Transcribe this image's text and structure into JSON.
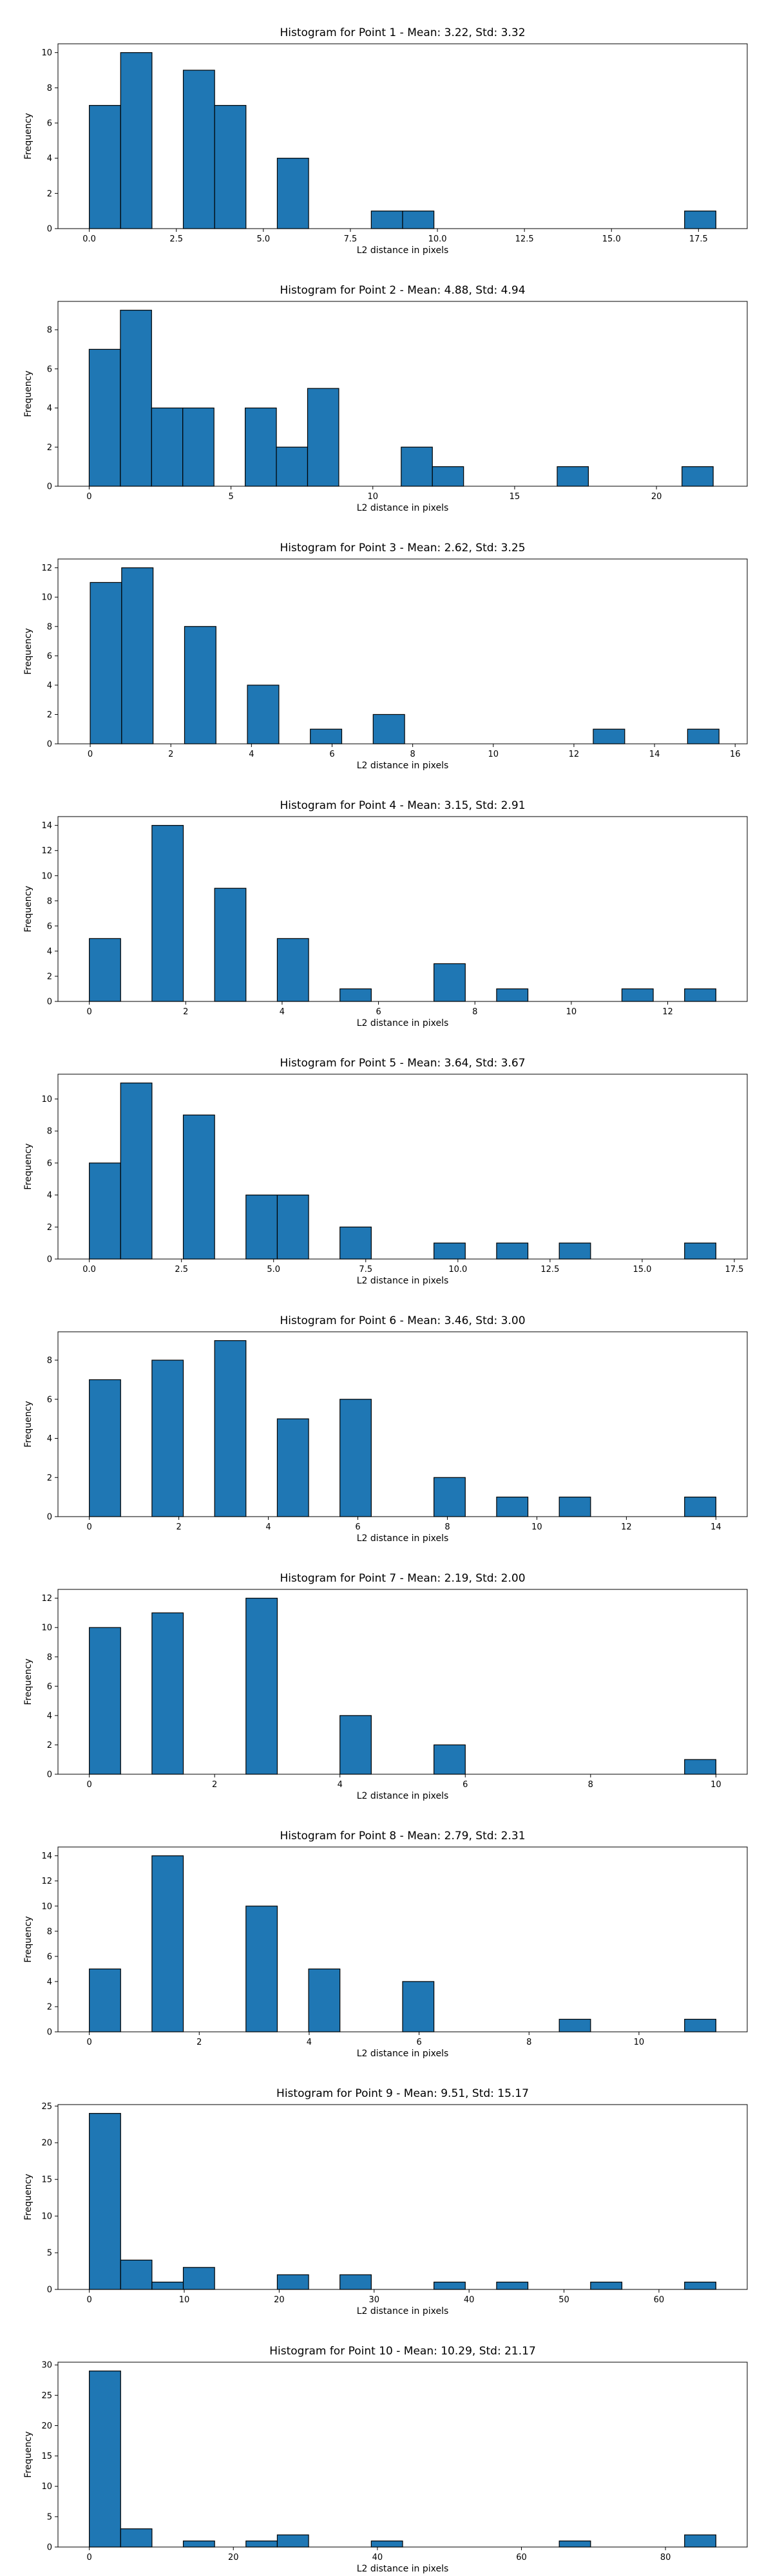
{
  "chart_data": [
    {
      "type": "bar",
      "title": "Histogram for Point 1 - Mean: 3.22, Std: 3.32",
      "xlabel": "L2 distance in pixels",
      "ylabel": "Frequency",
      "xlim": [
        -0.9,
        18.9
      ],
      "ylim": [
        0,
        10.5
      ],
      "xticks": [
        0.0,
        2.5,
        5.0,
        7.5,
        10.0,
        12.5,
        15.0,
        17.5
      ],
      "xtick_labels": [
        "0.0",
        "2.5",
        "5.0",
        "7.5",
        "10.0",
        "12.5",
        "15.0",
        "17.5"
      ],
      "yticks": [
        0,
        2,
        4,
        6,
        8,
        10
      ],
      "bins": [
        0,
        0.9,
        1.8,
        2.7,
        3.6,
        4.5,
        5.4,
        6.3,
        7.2,
        8.1,
        9.0,
        9.9,
        10.8,
        11.7,
        12.6,
        13.5,
        14.4,
        15.3,
        16.2,
        17.1,
        18.0
      ],
      "counts": [
        7,
        10,
        0,
        9,
        7,
        0,
        4,
        0,
        0,
        1,
        1,
        0,
        0,
        0,
        0,
        0,
        0,
        0,
        0,
        1
      ]
    },
    {
      "type": "bar",
      "title": "Histogram for Point 2 - Mean: 4.88, Std: 4.94",
      "xlabel": "L2 distance in pixels",
      "ylabel": "Frequency",
      "xlim": [
        -1.1,
        23.2
      ],
      "ylim": [
        0,
        9.45
      ],
      "xticks": [
        0,
        5,
        10,
        15,
        20
      ],
      "xtick_labels": [
        "0",
        "5",
        "10",
        "15",
        "20"
      ],
      "yticks": [
        0,
        2,
        4,
        6,
        8
      ],
      "bins": [
        0,
        1.1,
        2.2,
        3.3,
        4.4,
        5.5,
        6.6,
        7.7,
        8.8,
        9.9,
        11.0,
        12.1,
        13.2,
        14.3,
        15.4,
        16.5,
        17.6,
        18.7,
        19.8,
        20.9,
        22.0
      ],
      "counts": [
        7,
        9,
        4,
        4,
        0,
        4,
        2,
        5,
        0,
        0,
        2,
        1,
        0,
        0,
        0,
        1,
        0,
        0,
        0,
        1
      ]
    },
    {
      "type": "bar",
      "title": "Histogram for Point 3 - Mean: 2.62, Std: 3.25",
      "xlabel": "L2 distance in pixels",
      "ylabel": "Frequency",
      "xlim": [
        -0.8,
        16.3
      ],
      "ylim": [
        0,
        12.6
      ],
      "xticks": [
        0,
        2,
        4,
        6,
        8,
        10,
        12,
        14,
        16
      ],
      "xtick_labels": [
        "0",
        "2",
        "4",
        "6",
        "8",
        "10",
        "12",
        "14",
        "16"
      ],
      "yticks": [
        0,
        2,
        4,
        6,
        8,
        10,
        12
      ],
      "bins": [
        0,
        0.78,
        1.56,
        2.34,
        3.12,
        3.9,
        4.68,
        5.46,
        6.24,
        7.02,
        7.8,
        8.58,
        9.36,
        10.14,
        10.92,
        11.7,
        12.48,
        13.26,
        14.04,
        14.82,
        15.6
      ],
      "counts": [
        11,
        12,
        0,
        8,
        0,
        4,
        0,
        1,
        0,
        2,
        0,
        0,
        0,
        0,
        0,
        0,
        1,
        0,
        0,
        1
      ]
    },
    {
      "type": "bar",
      "title": "Histogram for Point 4 - Mean: 3.15, Std: 2.91",
      "xlabel": "L2 distance in pixels",
      "ylabel": "Frequency",
      "xlim": [
        -0.65,
        13.65
      ],
      "ylim": [
        0,
        14.7
      ],
      "xticks": [
        0,
        2,
        4,
        6,
        8,
        10,
        12
      ],
      "xtick_labels": [
        "0",
        "2",
        "4",
        "6",
        "8",
        "10",
        "12"
      ],
      "yticks": [
        0,
        2,
        4,
        6,
        8,
        10,
        12,
        14
      ],
      "bins": [
        0,
        0.65,
        1.3,
        1.95,
        2.6,
        3.25,
        3.9,
        4.55,
        5.2,
        5.85,
        6.5,
        7.15,
        7.8,
        8.45,
        9.1,
        9.75,
        10.4,
        11.05,
        11.7,
        12.35,
        13.0
      ],
      "counts": [
        5,
        0,
        14,
        0,
        9,
        0,
        5,
        0,
        1,
        0,
        0,
        3,
        0,
        1,
        0,
        0,
        0,
        1,
        0,
        1
      ]
    },
    {
      "type": "bar",
      "title": "Histogram for Point 5 - Mean: 3.64, Std: 3.67",
      "xlabel": "L2 distance in pixels",
      "ylabel": "Frequency",
      "xlim": [
        -0.85,
        17.85
      ],
      "ylim": [
        0,
        11.55
      ],
      "xticks": [
        0.0,
        2.5,
        5.0,
        7.5,
        10.0,
        12.5,
        15.0,
        17.5
      ],
      "xtick_labels": [
        "0.0",
        "2.5",
        "5.0",
        "7.5",
        "10.0",
        "12.5",
        "15.0",
        "17.5"
      ],
      "yticks": [
        0,
        2,
        4,
        6,
        8,
        10
      ],
      "bins": [
        0,
        0.85,
        1.7,
        2.55,
        3.4,
        4.25,
        5.1,
        5.95,
        6.8,
        7.65,
        8.5,
        9.35,
        10.2,
        11.05,
        11.9,
        12.75,
        13.6,
        14.45,
        15.3,
        16.15,
        17.0
      ],
      "counts": [
        6,
        11,
        0,
        9,
        0,
        4,
        4,
        0,
        2,
        0,
        0,
        1,
        0,
        1,
        0,
        1,
        0,
        0,
        0,
        1
      ]
    },
    {
      "type": "bar",
      "title": "Histogram for Point 6 - Mean: 3.46, Std: 3.00",
      "xlabel": "L2 distance in pixels",
      "ylabel": "Frequency",
      "xlim": [
        -0.7,
        14.7
      ],
      "ylim": [
        0,
        9.45
      ],
      "xticks": [
        0,
        2,
        4,
        6,
        8,
        10,
        12,
        14
      ],
      "xtick_labels": [
        "0",
        "2",
        "4",
        "6",
        "8",
        "10",
        "12",
        "14"
      ],
      "yticks": [
        0,
        2,
        4,
        6,
        8
      ],
      "bins": [
        0,
        0.7,
        1.4,
        2.1,
        2.8,
        3.5,
        4.2,
        4.9,
        5.6,
        6.3,
        7.0,
        7.7,
        8.4,
        9.1,
        9.8,
        10.5,
        11.2,
        11.9,
        12.6,
        13.3,
        14.0
      ],
      "counts": [
        7,
        0,
        8,
        0,
        9,
        0,
        5,
        0,
        6,
        0,
        0,
        2,
        0,
        1,
        0,
        1,
        0,
        0,
        0,
        1
      ]
    },
    {
      "type": "bar",
      "title": "Histogram for Point 7 - Mean: 2.19, Std: 2.00",
      "xlabel": "L2 distance in pixels",
      "ylabel": "Frequency",
      "xlim": [
        -0.5,
        10.5
      ],
      "ylim": [
        0,
        12.6
      ],
      "xticks": [
        0,
        2,
        4,
        6,
        8,
        10
      ],
      "xtick_labels": [
        "0",
        "2",
        "4",
        "6",
        "8",
        "10"
      ],
      "yticks": [
        0,
        2,
        4,
        6,
        8,
        10,
        12
      ],
      "bins": [
        0,
        0.5,
        1.0,
        1.5,
        2.0,
        2.5,
        3.0,
        3.5,
        4.0,
        4.5,
        5.0,
        5.5,
        6.0,
        6.5,
        7.0,
        7.5,
        8.0,
        8.5,
        9.0,
        9.5,
        10.0
      ],
      "counts": [
        10,
        0,
        11,
        0,
        0,
        12,
        0,
        0,
        4,
        0,
        0,
        2,
        0,
        0,
        0,
        0,
        0,
        0,
        0,
        1
      ]
    },
    {
      "type": "bar",
      "title": "Histogram for Point 8 - Mean: 2.79, Std: 2.31",
      "xlabel": "L2 distance in pixels",
      "ylabel": "Frequency",
      "xlim": [
        -0.57,
        11.97
      ],
      "ylim": [
        0,
        14.7
      ],
      "xticks": [
        0,
        2,
        4,
        6,
        8,
        10
      ],
      "xtick_labels": [
        "0",
        "2",
        "4",
        "6",
        "8",
        "10"
      ],
      "yticks": [
        0,
        2,
        4,
        6,
        8,
        10,
        12,
        14
      ],
      "bins": [
        0,
        0.57,
        1.14,
        1.71,
        2.28,
        2.85,
        3.42,
        3.99,
        4.56,
        5.13,
        5.7,
        6.27,
        6.84,
        7.41,
        7.98,
        8.55,
        9.12,
        9.69,
        10.26,
        10.83,
        11.4
      ],
      "counts": [
        5,
        0,
        14,
        0,
        0,
        10,
        0,
        5,
        0,
        0,
        4,
        0,
        0,
        0,
        0,
        1,
        0,
        0,
        0,
        1
      ]
    },
    {
      "type": "bar",
      "title": "Histogram for Point 9 - Mean: 9.51, Std: 15.17",
      "xlabel": "L2 distance in pixels",
      "ylabel": "Frequency",
      "xlim": [
        -3.3,
        69.3
      ],
      "ylim": [
        0,
        25.2
      ],
      "xticks": [
        0,
        10,
        20,
        30,
        40,
        50,
        60
      ],
      "xtick_labels": [
        "0",
        "10",
        "20",
        "30",
        "40",
        "50",
        "60"
      ],
      "yticks": [
        0,
        5,
        10,
        15,
        20,
        25
      ],
      "bins": [
        0,
        3.3,
        6.6,
        9.9,
        13.2,
        16.5,
        19.8,
        23.1,
        26.4,
        29.7,
        33.0,
        36.3,
        39.6,
        42.9,
        46.2,
        49.5,
        52.8,
        56.1,
        59.4,
        62.7,
        66.0
      ],
      "counts": [
        24,
        4,
        1,
        3,
        0,
        0,
        2,
        0,
        2,
        0,
        0,
        1,
        0,
        1,
        0,
        0,
        1,
        0,
        0,
        1
      ]
    },
    {
      "type": "bar",
      "title": "Histogram for Point 10 - Mean: 10.29, Std: 21.17",
      "xlabel": "L2 distance in pixels",
      "ylabel": "Frequency",
      "xlim": [
        -4.35,
        91.35
      ],
      "ylim": [
        0,
        30.45
      ],
      "xticks": [
        0,
        20,
        40,
        60,
        80
      ],
      "xtick_labels": [
        "0",
        "20",
        "40",
        "60",
        "80"
      ],
      "yticks": [
        0,
        5,
        10,
        15,
        20,
        25,
        30
      ],
      "bins": [
        0,
        4.35,
        8.7,
        13.05,
        17.4,
        21.75,
        26.1,
        30.45,
        34.8,
        39.15,
        43.5,
        47.85,
        52.2,
        56.55,
        60.9,
        65.25,
        69.6,
        73.95,
        78.3,
        82.65,
        87.0
      ],
      "counts": [
        29,
        3,
        0,
        1,
        0,
        1,
        2,
        0,
        0,
        1,
        0,
        0,
        0,
        0,
        0,
        1,
        0,
        0,
        0,
        2
      ]
    }
  ],
  "colors": {
    "bar_fill": "#1f77b4",
    "bar_edge": "#000000",
    "axis": "#000000"
  }
}
